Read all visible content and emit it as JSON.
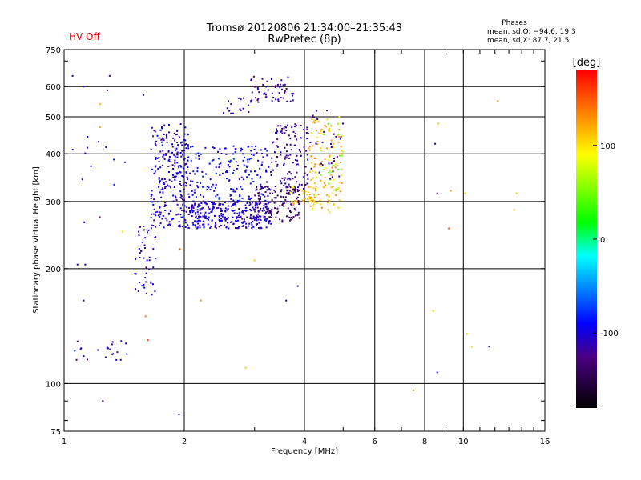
{
  "header": {
    "status": "HV Off",
    "title": "Tromsø 20120806 21:34:00–21:35:43",
    "subtitle": "RwPretec (8p)",
    "stats_heading": "Phases",
    "stats_o": "mean, sd,O: −94.6, 19.3",
    "stats_x": "mean, sd,X:  87.7, 21.5"
  },
  "chart_data": {
    "type": "scatter",
    "xlabel": "Frequency [MHz]",
    "ylabel": "Stationary phase Virtual Height [km]",
    "x_scale": "log",
    "y_scale": "log",
    "xlim": [
      1,
      16
    ],
    "ylim": [
      75,
      750
    ],
    "x_ticks": [
      1,
      2,
      4,
      6,
      8,
      10,
      16
    ],
    "x_tick_labels": [
      "1",
      "2",
      "4",
      "6",
      "8",
      "10",
      "16"
    ],
    "y_ticks": [
      75,
      100,
      200,
      300,
      400,
      500,
      600,
      750
    ],
    "y_tick_labels": [
      "75",
      "100",
      "200",
      "300",
      "400",
      "500",
      "600",
      "750"
    ],
    "grid": true,
    "colorbar": {
      "label": "[deg]",
      "range": [
        -180,
        180
      ],
      "ticks": [
        100,
        0,
        -100
      ],
      "tick_labels": [
        "100",
        "0",
        "-100"
      ],
      "colormap": "rainbow"
    },
    "clusters": [
      {
        "x": [
          1.65,
          2.05
        ],
        "y": [
          255,
          480
        ],
        "phase": -105,
        "count": 260
      },
      {
        "x": [
          2.05,
          3.3
        ],
        "y": [
          255,
          300
        ],
        "phase": -105,
        "count": 300
      },
      {
        "x": [
          2.05,
          3.3
        ],
        "y": [
          300,
          420
        ],
        "phase": -95,
        "count": 180
      },
      {
        "x": [
          3.0,
          3.9
        ],
        "y": [
          265,
          330
        ],
        "phase": -135,
        "count": 130
      },
      {
        "x": [
          3.3,
          4.1
        ],
        "y": [
          320,
          480
        ],
        "phase": -120,
        "count": 120
      },
      {
        "x": [
          3.7,
          4.3
        ],
        "y": [
          290,
          330
        ],
        "phase": 110,
        "count": 40
      },
      {
        "x": [
          4.1,
          5.0
        ],
        "y": [
          280,
          500
        ],
        "phase": 115,
        "count": 110
      },
      {
        "x": [
          4.3,
          5.0
        ],
        "y": [
          320,
          480
        ],
        "phase": 55,
        "count": 20
      },
      {
        "x": [
          4.1,
          5.0
        ],
        "y": [
          340,
          520
        ],
        "phase": -125,
        "count": 30
      },
      {
        "x": [
          1.5,
          1.7
        ],
        "y": [
          170,
          260
        ],
        "phase": -110,
        "count": 45
      },
      {
        "x": [
          2.9,
          3.8
        ],
        "y": [
          540,
          640
        ],
        "phase": -115,
        "count": 55
      },
      {
        "x": [
          2.5,
          2.9
        ],
        "y": [
          510,
          560
        ],
        "phase": -110,
        "count": 15
      },
      {
        "x": [
          1.06,
          1.45
        ],
        "y": [
          115,
          130
        ],
        "phase": -110,
        "count": 20
      },
      {
        "x": [
          1.05,
          1.35
        ],
        "y": [
          180,
          640
        ],
        "phase": -100,
        "count": 12
      }
    ],
    "scattered_points": [
      {
        "x": 1.05,
        "y": 640,
        "phase": -110
      },
      {
        "x": 1.12,
        "y": 600,
        "phase": -100
      },
      {
        "x": 1.23,
        "y": 540,
        "phase": 120
      },
      {
        "x": 1.23,
        "y": 470,
        "phase": 130
      },
      {
        "x": 1.22,
        "y": 430,
        "phase": -110
      },
      {
        "x": 1.3,
        "y": 640,
        "phase": -120
      },
      {
        "x": 1.42,
        "y": 380,
        "phase": -110
      },
      {
        "x": 1.58,
        "y": 570,
        "phase": -110
      },
      {
        "x": 1.08,
        "y": 205,
        "phase": -110
      },
      {
        "x": 1.13,
        "y": 205,
        "phase": -110
      },
      {
        "x": 1.12,
        "y": 165,
        "phase": -110
      },
      {
        "x": 1.1,
        "y": 123,
        "phase": -110
      },
      {
        "x": 1.12,
        "y": 118,
        "phase": -110
      },
      {
        "x": 1.25,
        "y": 90,
        "phase": -120
      },
      {
        "x": 1.4,
        "y": 250,
        "phase": 100
      },
      {
        "x": 1.6,
        "y": 150,
        "phase": 140
      },
      {
        "x": 1.62,
        "y": 130,
        "phase": 160
      },
      {
        "x": 1.95,
        "y": 225,
        "phase": 150
      },
      {
        "x": 1.94,
        "y": 83,
        "phase": -110
      },
      {
        "x": 2.2,
        "y": 165,
        "phase": 140
      },
      {
        "x": 3.0,
        "y": 210,
        "phase": 110
      },
      {
        "x": 2.85,
        "y": 110,
        "phase": 110
      },
      {
        "x": 3.6,
        "y": 165,
        "phase": -100
      },
      {
        "x": 3.85,
        "y": 180,
        "phase": -110
      },
      {
        "x": 7.5,
        "y": 96,
        "phase": 130
      },
      {
        "x": 8.4,
        "y": 155,
        "phase": 110
      },
      {
        "x": 8.6,
        "y": 107,
        "phase": -110
      },
      {
        "x": 8.5,
        "y": 425,
        "phase": -110
      },
      {
        "x": 8.65,
        "y": 480,
        "phase": 110
      },
      {
        "x": 8.6,
        "y": 315,
        "phase": -120
      },
      {
        "x": 9.3,
        "y": 320,
        "phase": 130
      },
      {
        "x": 9.2,
        "y": 255,
        "phase": 155
      },
      {
        "x": 10.1,
        "y": 315,
        "phase": 110
      },
      {
        "x": 10.2,
        "y": 135,
        "phase": 110
      },
      {
        "x": 10.5,
        "y": 125,
        "phase": 110
      },
      {
        "x": 11.6,
        "y": 125,
        "phase": -110
      },
      {
        "x": 12.2,
        "y": 550,
        "phase": 130
      },
      {
        "x": 13.4,
        "y": 285,
        "phase": 110
      },
      {
        "x": 13.6,
        "y": 315,
        "phase": 110
      }
    ]
  }
}
